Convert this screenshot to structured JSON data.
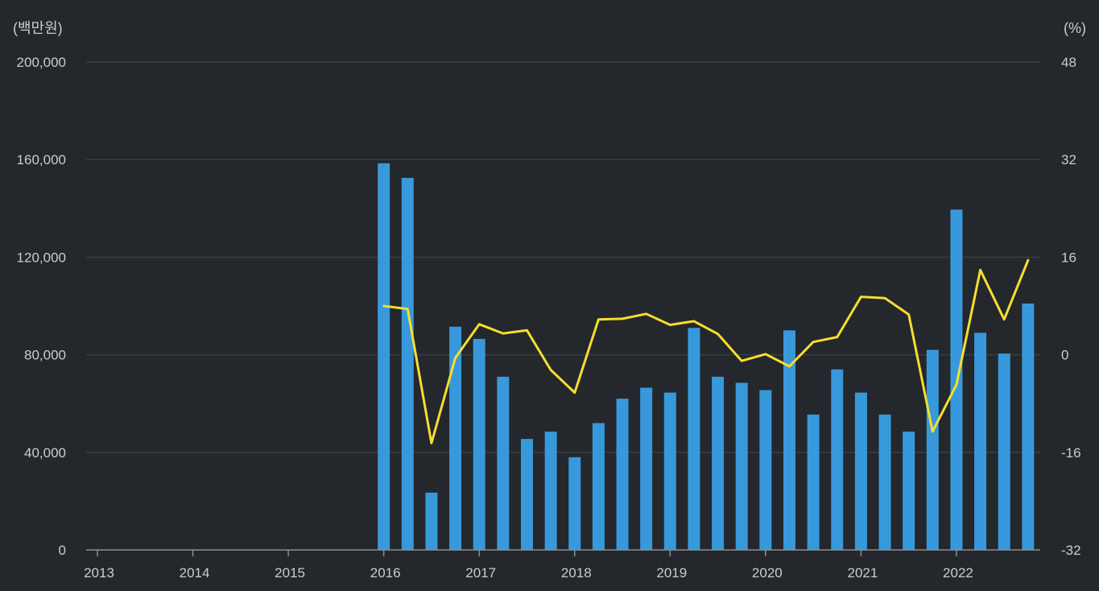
{
  "chart_data": {
    "type": "bar",
    "y_left_unit": "(백만원)",
    "y_right_unit": "(%)",
    "y_left_ticks": [
      "0",
      "40,000",
      "80,000",
      "120,000",
      "160,000",
      "200,000"
    ],
    "y_right_ticks": [
      "-32",
      "-16",
      "0",
      "16",
      "32",
      "48"
    ],
    "x_ticks": [
      "2013",
      "2014",
      "2015",
      "2016",
      "2017",
      "2018",
      "2019",
      "2020",
      "2021",
      "2022"
    ],
    "ylim_left": [
      0,
      200000
    ],
    "ylim_right": [
      -32,
      48
    ],
    "colors": {
      "bar": "#3799db",
      "line": "#f5de2e",
      "grid": "#3a3e45",
      "axis": "#8a8e94",
      "text": "#c9ccd1",
      "background": "#24272c"
    },
    "series": [
      {
        "type": "bar",
        "axis": "left",
        "x": [
          "2016-01",
          "2016-04",
          "2016-07",
          "2016-10",
          "2017-01",
          "2017-04",
          "2017-07",
          "2017-10",
          "2018-01",
          "2018-04",
          "2018-07",
          "2018-10",
          "2019-01",
          "2019-04",
          "2019-07",
          "2019-10",
          "2020-01",
          "2020-04",
          "2020-07",
          "2020-10",
          "2021-01",
          "2021-04",
          "2021-07",
          "2021-10",
          "2022-01",
          "2022-04",
          "2022-07",
          "2022-10"
        ],
        "values": [
          158500,
          152500,
          23500,
          91500,
          86500,
          71000,
          45500,
          48500,
          38000,
          52000,
          62000,
          66500,
          64500,
          91000,
          71000,
          68500,
          65500,
          90000,
          55500,
          74000,
          64500,
          55500,
          48500,
          82000,
          139500,
          89000,
          80500,
          101000
        ]
      },
      {
        "type": "line",
        "axis": "right",
        "x": [
          "2016-01",
          "2016-04",
          "2016-07",
          "2016-10",
          "2017-01",
          "2017-04",
          "2017-07",
          "2017-10",
          "2018-01",
          "2018-04",
          "2018-07",
          "2018-10",
          "2019-01",
          "2019-04",
          "2019-07",
          "2019-10",
          "2020-01",
          "2020-04",
          "2020-07",
          "2020-10",
          "2021-01",
          "2021-04",
          "2021-07",
          "2021-10",
          "2022-01",
          "2022-04",
          "2022-07",
          "2022-10"
        ],
        "values": [
          8.0,
          7.5,
          -14.5,
          -0.5,
          5.0,
          3.5,
          4.0,
          -2.5,
          -6.2,
          5.8,
          5.9,
          6.7,
          4.9,
          5.5,
          3.4,
          -1.0,
          0.1,
          -1.9,
          2.1,
          2.9,
          9.5,
          9.3,
          6.6,
          -12.6,
          -4.9,
          13.9,
          5.8,
          15.5
        ]
      }
    ]
  }
}
